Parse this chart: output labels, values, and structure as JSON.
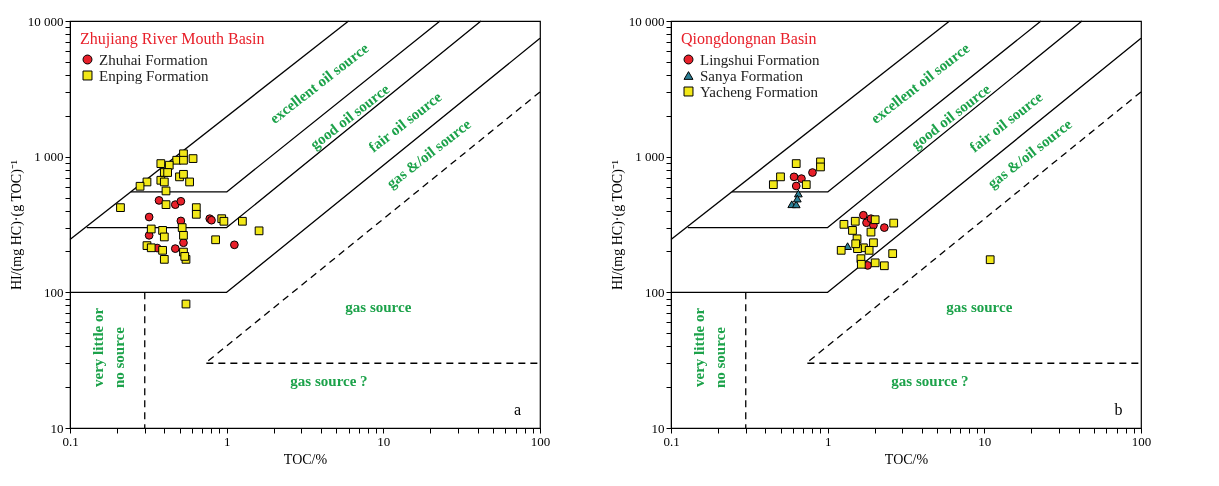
{
  "chart_data": [
    {
      "type": "scatter",
      "xlabel": "TOC/%",
      "ylabel": "HI/(mg HC)·(g TOC)⁻¹",
      "legend_title": "Zhujiang River Mouth Basin",
      "legend": "top left",
      "grid": false,
      "log": "xy",
      "xlim": [
        0.1,
        100
      ],
      "ylim": [
        10,
        10000
      ],
      "xticks": [
        0.1,
        {
          "value": 0.2,
          "label": null
        },
        {
          "value": 0.3,
          "label": null
        },
        {
          "value": 0.4,
          "label": null
        },
        {
          "value": 0.5,
          "label": null
        },
        {
          "value": 0.6,
          "label": null
        },
        {
          "value": 0.7,
          "label": null
        },
        {
          "value": 0.8,
          "label": null
        },
        {
          "value": 0.9,
          "label": null
        },
        1,
        {
          "value": 2,
          "label": null
        },
        {
          "value": 3,
          "label": null
        },
        {
          "value": 4,
          "label": null
        },
        {
          "value": 5,
          "label": null
        },
        {
          "value": 6,
          "label": null
        },
        {
          "value": 7,
          "label": null
        },
        {
          "value": 8,
          "label": null
        },
        {
          "value": 9,
          "label": null
        },
        10,
        {
          "value": 20,
          "label": null
        },
        {
          "value": 30,
          "label": null
        },
        {
          "value": 40,
          "label": null
        },
        {
          "value": 50,
          "label": null
        },
        {
          "value": 60,
          "label": null
        },
        {
          "value": 70,
          "label": null
        },
        {
          "value": 80,
          "label": null
        },
        {
          "value": 90,
          "label": null
        },
        100
      ],
      "yticks": [
        10,
        {
          "value": 20,
          "label": null
        },
        {
          "value": 30,
          "label": null
        },
        {
          "value": 40,
          "label": null
        },
        {
          "value": 50,
          "label": null
        },
        {
          "value": 60,
          "label": null
        },
        {
          "value": 70,
          "label": null
        },
        {
          "value": 80,
          "label": null
        },
        {
          "value": 90,
          "label": null
        },
        100,
        {
          "value": 200,
          "label": null
        },
        {
          "value": 300,
          "label": null
        },
        {
          "value": 400,
          "label": null
        },
        {
          "value": 500,
          "label": null
        },
        {
          "value": 600,
          "label": null
        },
        {
          "value": 700,
          "label": null
        },
        {
          "value": 800,
          "label": null
        },
        {
          "value": 900,
          "label": null
        },
        {
          "value": 1000,
          "label": "1 000"
        },
        {
          "value": 2000,
          "label": null
        },
        {
          "value": 3000,
          "label": null
        },
        {
          "value": 4000,
          "label": null
        },
        {
          "value": 5000,
          "label": null
        },
        {
          "value": 6000,
          "label": null
        },
        {
          "value": 7000,
          "label": null
        },
        {
          "value": 8000,
          "label": null
        },
        {
          "value": 9000,
          "label": null
        },
        {
          "value": 10000,
          "label": "10 000"
        }
      ],
      "series": [
        {
          "type": "line",
          "color": "#000000",
          "line_style": "solid",
          "marker": "none",
          "x": [
            0.1,
            6
          ],
          "values": [
            245,
            10000
          ]
        },
        {
          "type": "line",
          "color": "#000000",
          "line_style": "solid",
          "marker": "none",
          "x": [
            0.245,
            1,
            23
          ],
          "values": [
            550,
            550,
            10000
          ]
        },
        {
          "type": "line",
          "color": "#000000",
          "line_style": "solid",
          "marker": "none",
          "x": [
            0.128,
            1,
            42
          ],
          "values": [
            300,
            300,
            10000
          ]
        },
        {
          "type": "line",
          "color": "#000000",
          "line_style": "solid",
          "marker": "none",
          "x": [
            0.1,
            1,
            100
          ],
          "values": [
            100,
            100,
            7450
          ]
        },
        {
          "type": "line",
          "color": "#000000",
          "line_style": "dashed",
          "marker": "none",
          "x": [
            100,
            0.73,
            100
          ],
          "values": [
            3000,
            30,
            30
          ]
        },
        {
          "type": "line",
          "color": "#000000",
          "line_style": "dashed",
          "marker": "none",
          "x": [
            0.3,
            0.3
          ],
          "values": [
            100,
            10
          ]
        },
        {
          "type": "scatter",
          "name": "Zhuhai Formation",
          "color": "#e8202a",
          "marker": "circle",
          "x": [
            0.37,
            0.47,
            0.51,
            0.32,
            0.51,
            0.78,
            0.8,
            0.32,
            0.36,
            0.47,
            0.53,
            1.12
          ],
          "values": [
            476,
            443,
            469,
            359,
            336,
            349,
            340,
            263,
            212,
            210,
            232,
            224
          ]
        },
        {
          "type": "scatter",
          "name": "Enping Formation",
          "color": "#f2e818",
          "marker": "square",
          "x": [
            0.53,
            0.61,
            0.48,
            0.53,
            0.38,
            0.43,
            0.4,
            0.42,
            0.5,
            0.53,
            0.58,
            0.38,
            0.4,
            0.31,
            0.28,
            0.41,
            0.21,
            0.41,
            0.64,
            0.64,
            0.93,
            0.96,
            1.26,
            1.61,
            0.33,
            0.39,
            0.52,
            0.4,
            0.53,
            0.85,
            0.31,
            0.33,
            0.39,
            0.53,
            0.4,
            0.55,
            0.54,
            0.55
          ],
          "values": [
            1050,
            968,
            941,
            941,
            889,
            865,
            764,
            764,
            710,
            741,
            651,
            670,
            651,
            651,
            605,
            559,
            421,
            443,
            421,
            376,
            349,
            334,
            334,
            284,
            293,
            286,
            300,
            256,
            263,
            244,
            221,
            213,
            204,
            198,
            175,
            175,
            184,
            82
          ]
        }
      ],
      "annotations": [
        "excellent oil source",
        "good oil source",
        "fair oil source",
        "gas &/oil source",
        "gas source",
        "gas source ?",
        "very little or",
        "no source",
        "a"
      ]
    },
    {
      "type": "scatter",
      "xlabel": "TOC/%",
      "ylabel": "HI/(mg HC)·(g TOC)⁻¹",
      "legend_title": "Qiongdongnan Basin",
      "legend": "top left",
      "grid": false,
      "log": "xy",
      "xlim": [
        0.1,
        100
      ],
      "ylim": [
        10,
        10000
      ],
      "xticks": [
        0.1,
        {
          "value": 0.2,
          "label": null
        },
        {
          "value": 0.3,
          "label": null
        },
        {
          "value": 0.4,
          "label": null
        },
        {
          "value": 0.5,
          "label": null
        },
        {
          "value": 0.6,
          "label": null
        },
        {
          "value": 0.7,
          "label": null
        },
        {
          "value": 0.8,
          "label": null
        },
        {
          "value": 0.9,
          "label": null
        },
        1,
        {
          "value": 2,
          "label": null
        },
        {
          "value": 3,
          "label": null
        },
        {
          "value": 4,
          "label": null
        },
        {
          "value": 5,
          "label": null
        },
        {
          "value": 6,
          "label": null
        },
        {
          "value": 7,
          "label": null
        },
        {
          "value": 8,
          "label": null
        },
        {
          "value": 9,
          "label": null
        },
        10,
        {
          "value": 20,
          "label": null
        },
        {
          "value": 30,
          "label": null
        },
        {
          "value": 40,
          "label": null
        },
        {
          "value": 50,
          "label": null
        },
        {
          "value": 60,
          "label": null
        },
        {
          "value": 70,
          "label": null
        },
        {
          "value": 80,
          "label": null
        },
        {
          "value": 90,
          "label": null
        },
        100
      ],
      "yticks": [
        10,
        {
          "value": 20,
          "label": null
        },
        {
          "value": 30,
          "label": null
        },
        {
          "value": 40,
          "label": null
        },
        {
          "value": 50,
          "label": null
        },
        {
          "value": 60,
          "label": null
        },
        {
          "value": 70,
          "label": null
        },
        {
          "value": 80,
          "label": null
        },
        {
          "value": 90,
          "label": null
        },
        100,
        {
          "value": 200,
          "label": null
        },
        {
          "value": 300,
          "label": null
        },
        {
          "value": 400,
          "label": null
        },
        {
          "value": 500,
          "label": null
        },
        {
          "value": 600,
          "label": null
        },
        {
          "value": 700,
          "label": null
        },
        {
          "value": 800,
          "label": null
        },
        {
          "value": 900,
          "label": null
        },
        {
          "value": 1000,
          "label": "1 000"
        },
        {
          "value": 2000,
          "label": null
        },
        {
          "value": 3000,
          "label": null
        },
        {
          "value": 4000,
          "label": null
        },
        {
          "value": 5000,
          "label": null
        },
        {
          "value": 6000,
          "label": null
        },
        {
          "value": 7000,
          "label": null
        },
        {
          "value": 8000,
          "label": null
        },
        {
          "value": 9000,
          "label": null
        },
        {
          "value": 10000,
          "label": "10 000"
        }
      ],
      "series": [
        {
          "type": "line",
          "color": "#000000",
          "line_style": "solid",
          "marker": "none",
          "x": [
            0.1,
            6
          ],
          "values": [
            245,
            10000
          ]
        },
        {
          "type": "line",
          "color": "#000000",
          "line_style": "solid",
          "marker": "none",
          "x": [
            0.245,
            1,
            23
          ],
          "values": [
            550,
            550,
            10000
          ]
        },
        {
          "type": "line",
          "color": "#000000",
          "line_style": "solid",
          "marker": "none",
          "x": [
            0.128,
            1,
            42
          ],
          "values": [
            300,
            300,
            10000
          ]
        },
        {
          "type": "line",
          "color": "#000000",
          "line_style": "solid",
          "marker": "none",
          "x": [
            0.1,
            1,
            100
          ],
          "values": [
            100,
            100,
            7450
          ]
        },
        {
          "type": "line",
          "color": "#000000",
          "line_style": "dashed",
          "marker": "none",
          "x": [
            100,
            0.73,
            100
          ],
          "values": [
            3000,
            30,
            30
          ]
        },
        {
          "type": "line",
          "color": "#000000",
          "line_style": "dashed",
          "marker": "none",
          "x": [
            0.3,
            0.3
          ],
          "values": [
            100,
            10
          ]
        },
        {
          "type": "scatter",
          "name": "Lingshui Formation",
          "color": "#e8202a",
          "marker": "circle",
          "x": [
            0.61,
            0.68,
            0.8,
            0.63,
            1.69,
            1.77,
            1.89,
            1.96,
            2.3,
            1.8
          ],
          "values": [
            710,
            689,
            764,
            608,
            370,
            326,
            349,
            312,
            300,
            158
          ]
        },
        {
          "type": "scatter",
          "name": "Sanya Formation",
          "color": "#2a7f96",
          "marker": "triangle",
          "x": [
            0.65,
            0.59,
            0.63,
            0.64,
            1.34
          ],
          "values": [
            535,
            446,
            445,
            491,
            219
          ]
        },
        {
          "type": "scatter",
          "name": "Yacheng Formation",
          "color": "#f2e818",
          "marker": "square",
          "x": [
            0.63,
            0.9,
            0.9,
            0.5,
            0.45,
            0.73,
            1.27,
            1.5,
            2.01,
            2.64,
            1.44,
            1.89,
            1.54,
            1.96,
            1.22,
            1.69,
            1.84,
            1.55,
            1.63,
            1.64,
            2.01,
            2.3,
            2.6,
            10.9,
            1.51
          ],
          "values": [
            889,
            915,
            840,
            710,
            622,
            622,
            317,
            334,
            343,
            324,
            286,
            278,
            248,
            232,
            204,
            213,
            204,
            210,
            177,
            161,
            165,
            157,
            193,
            174,
            228
          ]
        }
      ],
      "annotations": [
        "excellent oil source",
        "good oil source",
        "fair oil source",
        "gas &/oil source",
        "gas source",
        "gas source ?",
        "very little or",
        "no source",
        "b"
      ]
    }
  ]
}
